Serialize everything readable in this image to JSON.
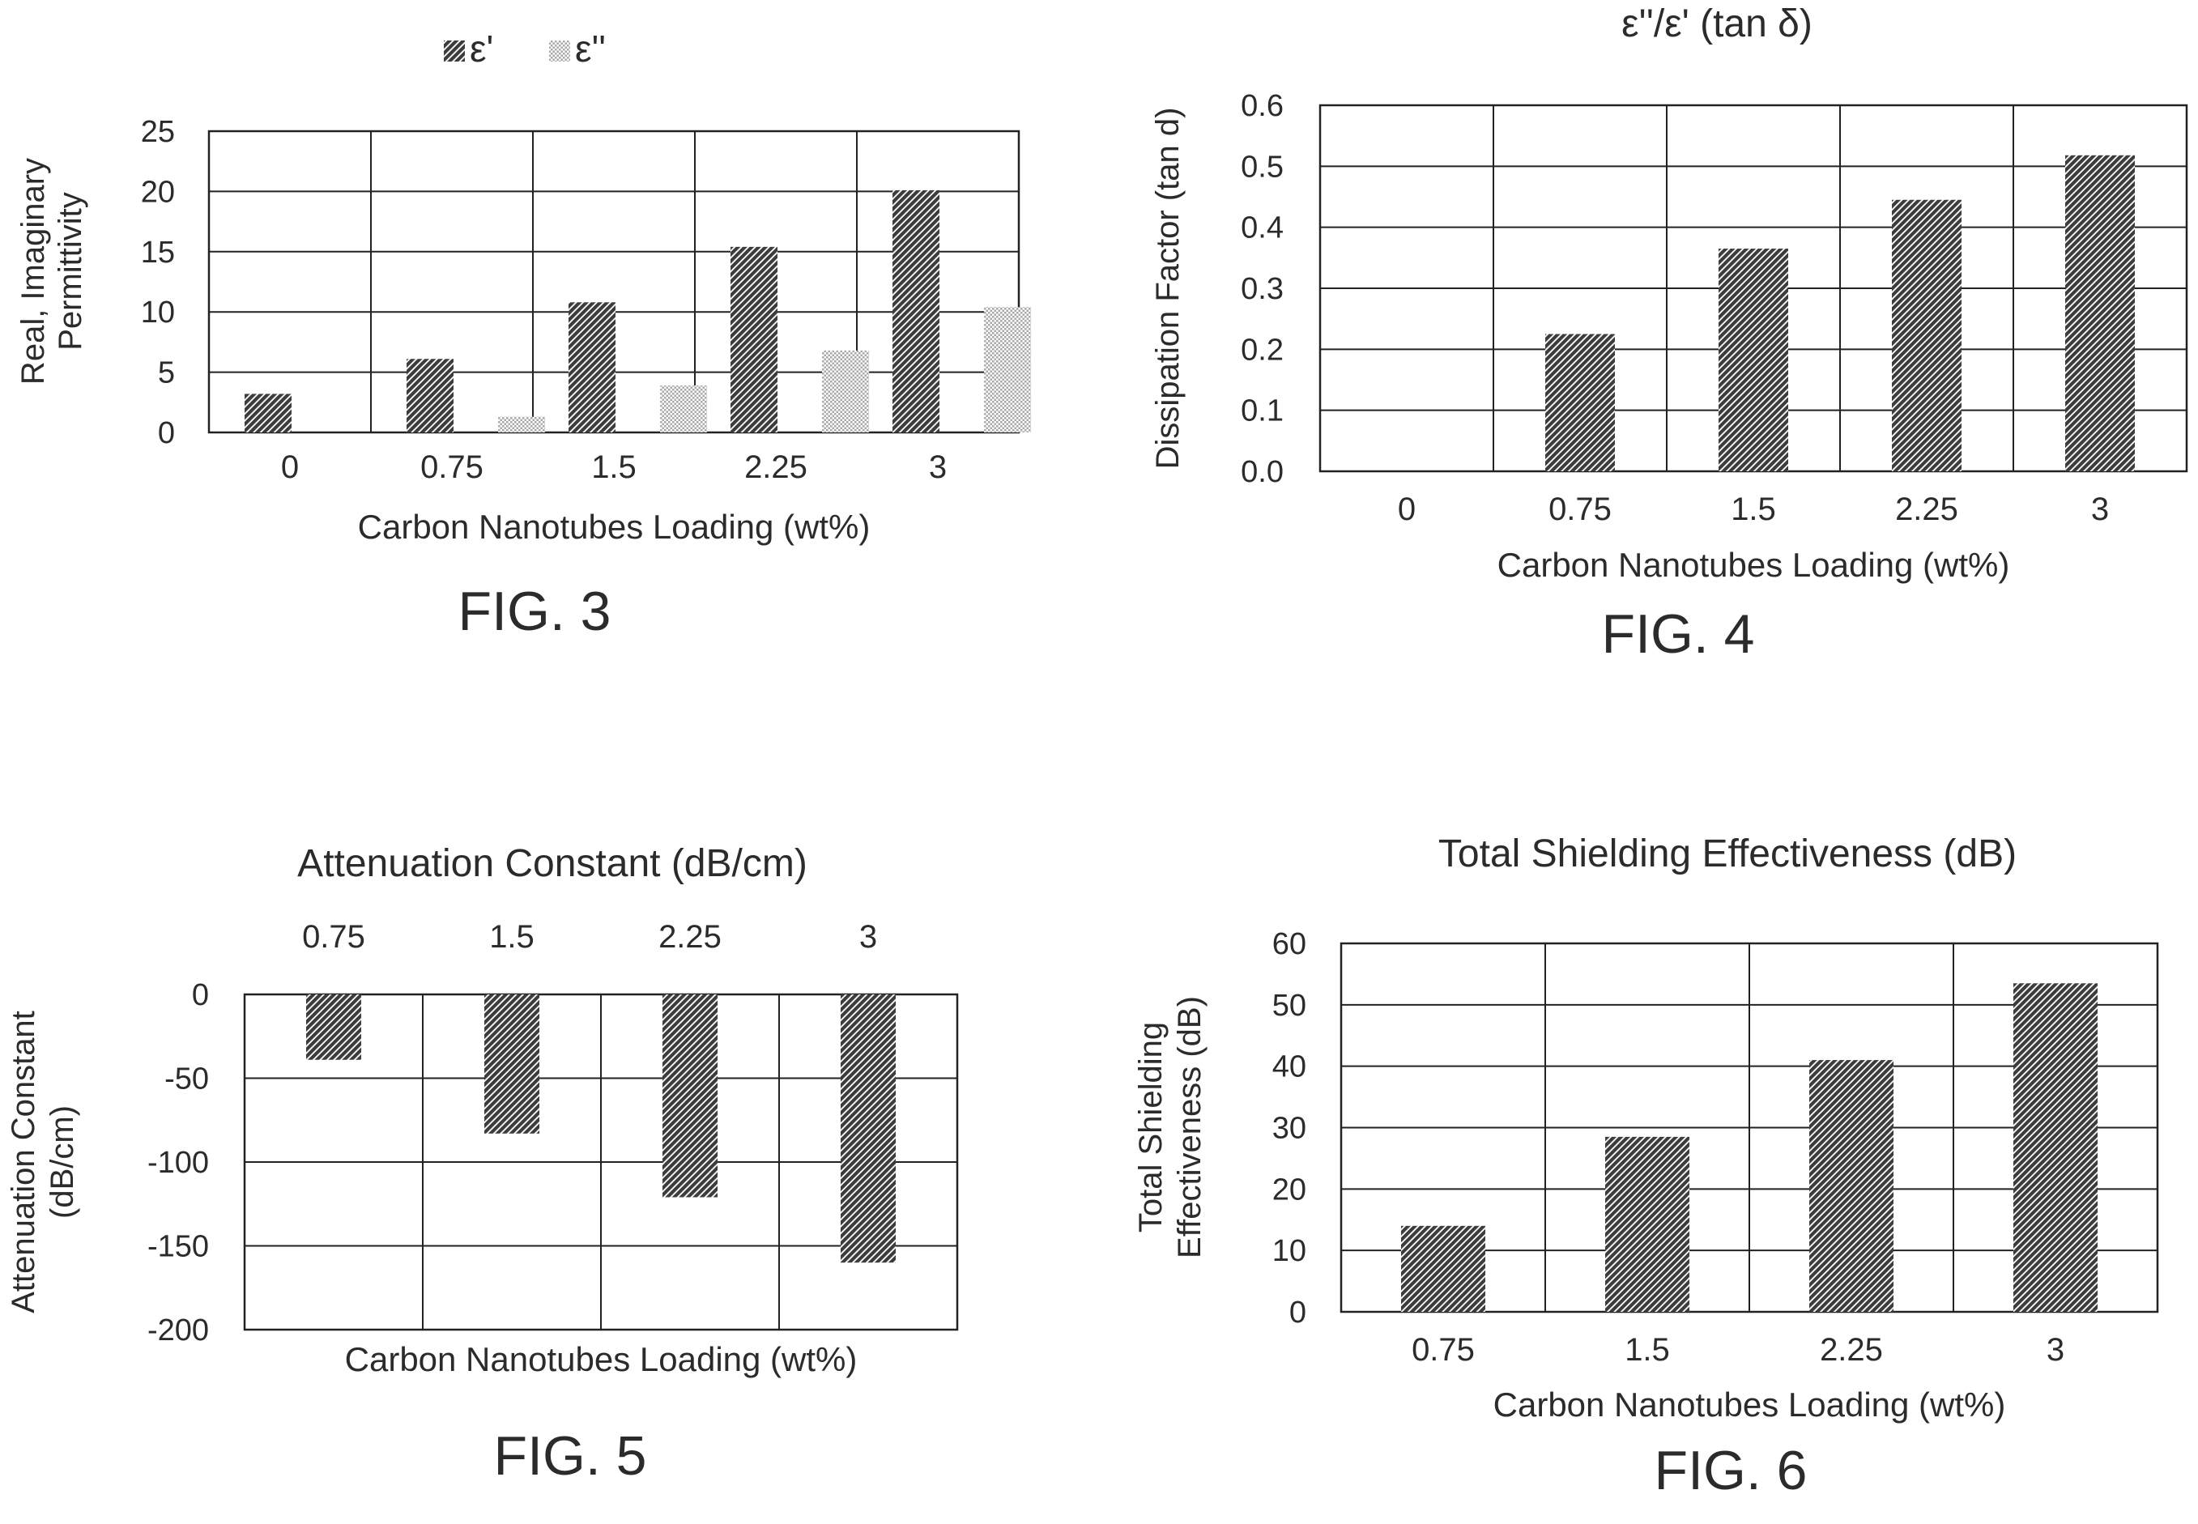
{
  "patterns": {
    "dark": "#3c3c3c",
    "light": "#a8a8a8",
    "stripe_bg": "#ffffff"
  },
  "chart_data": [
    {
      "type": "bar",
      "figure_label": "FIG. 3",
      "title": "",
      "categories": [
        "0",
        "0.75",
        "1.5",
        "2.25",
        "3"
      ],
      "series": [
        {
          "name": "ε'",
          "values": [
            3.2,
            6.1,
            10.8,
            15.4,
            20.1
          ]
        },
        {
          "name": "ε''",
          "values": [
            0,
            1.3,
            3.9,
            6.8,
            10.4
          ]
        }
      ],
      "xlabel": "Carbon Nanotubes Loading (wt%)",
      "ylabel": [
        "Real, Imaginary",
        "Permittivity"
      ],
      "ylim": [
        0,
        25
      ],
      "yticks": [
        "0",
        "5",
        "10",
        "15",
        "20",
        "25"
      ],
      "grid": true,
      "legend": "top"
    },
    {
      "type": "bar",
      "figure_label": "FIG. 4",
      "title": "ε''/ε' (tan δ)",
      "categories": [
        "0",
        "0.75",
        "1.5",
        "2.25",
        "3"
      ],
      "series": [
        {
          "values": [
            0,
            0.225,
            0.365,
            0.445,
            0.518
          ]
        }
      ],
      "xlabel": "Carbon Nanotubes Loading (wt%)",
      "ylabel": [
        "Dissipation Factor (tan d)"
      ],
      "ylim": [
        0,
        0.6
      ],
      "yticks": [
        "0.0",
        "0.1",
        "0.2",
        "0.3",
        "0.4",
        "0.5",
        "0.6"
      ],
      "grid": true
    },
    {
      "type": "bar",
      "figure_label": "FIG. 5",
      "title": "Attenuation Constant (dB/cm)",
      "categories": [
        "0.75",
        "1.5",
        "2.25",
        "3"
      ],
      "series": [
        {
          "values": [
            -39,
            -83,
            -121,
            -160
          ]
        }
      ],
      "xlabel": "Carbon Nanotubes Loading (wt%)",
      "ylabel": [
        "Attenuation Constant",
        "(dB/cm)"
      ],
      "ylim": [
        -200,
        0
      ],
      "yticks": [
        "-200",
        "-150",
        "-100",
        "-50",
        "0"
      ],
      "grid": true,
      "category_axis": "top"
    },
    {
      "type": "bar",
      "figure_label": "FIG. 6",
      "title": "Total Shielding Effectiveness (dB)",
      "categories": [
        "0.75",
        "1.5",
        "2.25",
        "3"
      ],
      "series": [
        {
          "values": [
            14,
            28.5,
            41,
            53.5
          ]
        }
      ],
      "xlabel": "Carbon Nanotubes Loading (wt%)",
      "ylabel": [
        "Total Shielding",
        "Effectiveness (dB)"
      ],
      "ylim": [
        0,
        60
      ],
      "yticks": [
        "0",
        "10",
        "20",
        "30",
        "40",
        "50",
        "60"
      ],
      "grid": true
    }
  ]
}
